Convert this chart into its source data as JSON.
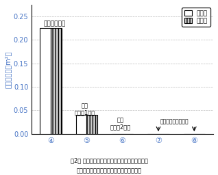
{
  "categories": [
    "④",
    "⑤",
    "⑥",
    "⑦",
    "⑧"
  ],
  "sono_hoka": [
    0.225,
    0.04,
    0.0,
    0.0,
    0.0
  ],
  "tade": [
    0.225,
    0.04,
    0.0,
    0.0,
    0.0
  ],
  "ylim": [
    0.0,
    0.275
  ],
  "yticks": [
    0.0,
    0.05,
    0.1,
    0.15,
    0.2,
    0.25
  ],
  "ylabel": "残草数（本／m²）",
  "legend_labels": [
    "その他",
    "タデ類"
  ],
  "bar_width": 0.3,
  "sono_hoka_color": "white",
  "tade_color": "#cccccc",
  "border_color": "black",
  "grid_color": "#bbbbbb",
  "figure_bg": "white",
  "text_color": "black",
  "tick_color": "#4472c4",
  "caption_line1": "図2． 土壌処理除草剤を用いる除草法で登熟期に",
  "caption_line2": "残った雑草数．タデ類以外の残草は無し．",
  "ann_soil": "土壌処理のみ",
  "ann_kikai1_line1": "慣行",
  "ann_kikai1_line2": "（機械1回）",
  "ann_kikai2_line1": "慣行",
  "ann_kikai2_line2": "（機械2回）",
  "ann_bentazon": "ベンタゾン利用体系"
}
